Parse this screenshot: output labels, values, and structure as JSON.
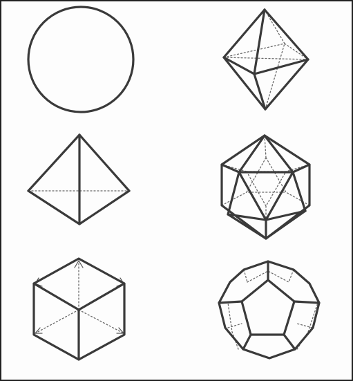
{
  "figures": [
    {
      "id": "sphere",
      "kind": "circle"
    },
    {
      "id": "octahedron",
      "kind": "polyhedron"
    },
    {
      "id": "tetrahedron",
      "kind": "polyhedron"
    },
    {
      "id": "icosahedron",
      "kind": "polyhedron"
    },
    {
      "id": "cube",
      "kind": "polyhedron"
    },
    {
      "id": "dodecahedron",
      "kind": "polyhedron"
    }
  ],
  "colors": {
    "line": "#3a3a3a",
    "hidden_line": "#6a6a6a",
    "background": "#fdfdfd",
    "frame": "#222222"
  }
}
